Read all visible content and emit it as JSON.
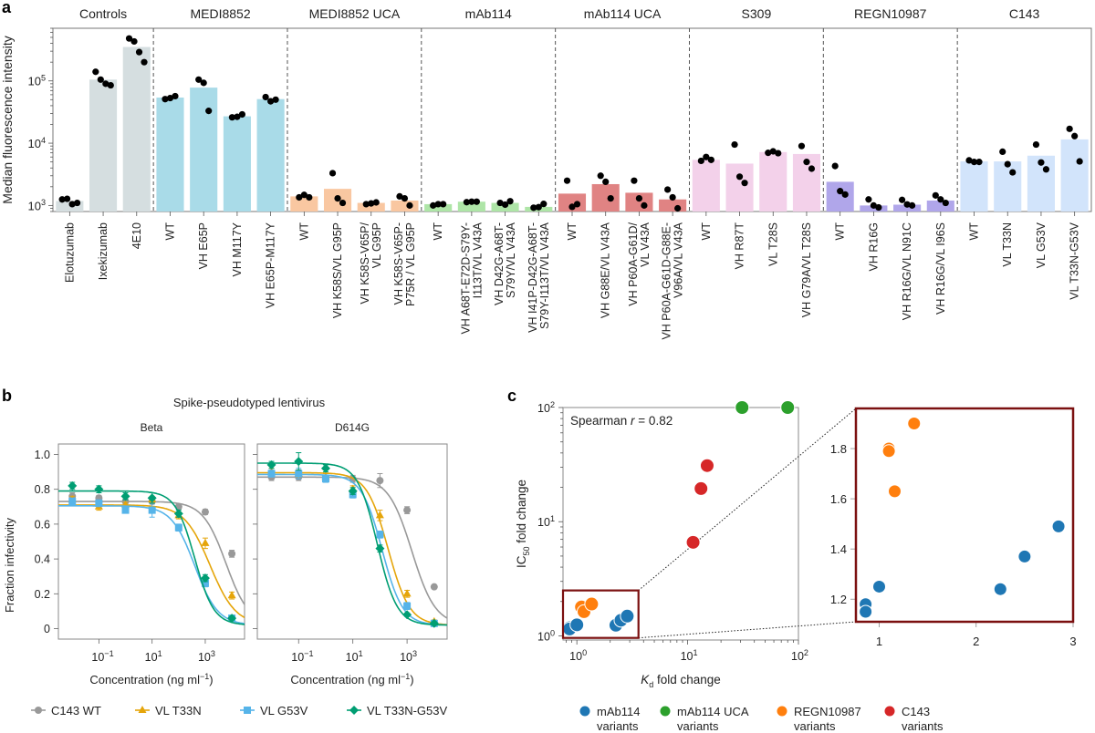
{
  "chart_data": [
    {
      "id": "a",
      "panel_label": "a",
      "type": "bar",
      "ylabel": "Median fluorescence intensity",
      "yscale": "log",
      "ylim": [
        800,
        700000
      ],
      "yticks": [
        {
          "value": 1000,
          "base": "10",
          "exp": "3"
        },
        {
          "value": 10000,
          "base": "10",
          "exp": "4"
        },
        {
          "value": 100000,
          "base": "10",
          "exp": "5"
        }
      ],
      "groups": [
        {
          "name": "Controls",
          "color": "#d5dee0",
          "categories": [
            {
              "label": [
                "Elotuzumab"
              ],
              "value": 1180,
              "points": [
                1250,
                1280,
                1050,
                1100
              ]
            },
            {
              "label": [
                "Ixekizumab"
              ],
              "value": 105000,
              "points": [
                140000,
                105000,
                90000,
                85000
              ]
            },
            {
              "label": [
                "4E10"
              ],
              "value": 350000,
              "points": [
                480000,
                430000,
                290000,
                200000
              ]
            }
          ]
        },
        {
          "name": "MEDI8852",
          "color": "#a9dbe8",
          "categories": [
            {
              "label": [
                "WT"
              ],
              "value": 54000,
              "points": [
                51000,
                53000,
                57000
              ]
            },
            {
              "label": [
                "VH E65P"
              ],
              "value": 78000,
              "points": [
                105000,
                93000,
                33000
              ]
            },
            {
              "label": [
                "VH M117Y"
              ],
              "value": 27000,
              "points": [
                26000,
                26500,
                29000
              ]
            },
            {
              "label": [
                "VH E65P-M117Y"
              ],
              "value": 51000,
              "points": [
                55000,
                47000,
                50000
              ]
            }
          ]
        },
        {
          "name": "MEDI8852 UCA",
          "color": "#f9c7a1",
          "categories": [
            {
              "label": [
                "WT"
              ],
              "value": 1400,
              "points": [
                1350,
                1480,
                1350
              ]
            },
            {
              "label": [
                "VH K58S/VL G95P"
              ],
              "value": 1850,
              "points": [
                3300,
                1300,
                1100
              ]
            },
            {
              "label": [
                "VH K58S-V65P/",
                "VL G95P"
              ],
              "value": 1100,
              "points": [
                1050,
                1080,
                1120
              ]
            },
            {
              "label": [
                "VH K58S-V65P-",
                "P75R / VL G95P"
              ],
              "value": 1200,
              "points": [
                1400,
                1300,
                1000
              ]
            }
          ]
        },
        {
          "name": "mAb114",
          "color": "#aee5a7",
          "categories": [
            {
              "label": [
                "WT"
              ],
              "value": 1050,
              "points": [
                1000,
                1050,
                1050
              ]
            },
            {
              "label": [
                "VH A68T-E72D-S79Y-",
                "I113T/VL V43A"
              ],
              "value": 1150,
              "points": [
                1130,
                1150,
                1150
              ]
            },
            {
              "label": [
                "VH D42G-A68T-",
                "S79Y/VL V43A"
              ],
              "value": 1100,
              "points": [
                1100,
                1030,
                1170
              ]
            },
            {
              "label": [
                "VH  I41P-D42G-A68T-",
                "S79Y-I113T/VL V43A"
              ],
              "value": 950,
              "points": [
                920,
                940,
                1060
              ]
            }
          ]
        },
        {
          "name": "mAb114 UCA",
          "color": "#e08383",
          "categories": [
            {
              "label": [
                "WT"
              ],
              "value": 1550,
              "points": [
                2500,
                950,
                1050
              ]
            },
            {
              "label": [
                "VH G88E/VL V43A"
              ],
              "value": 2200,
              "points": [
                3000,
                2400,
                1300
              ]
            },
            {
              "label": [
                "VH  P60A-G61D/",
                "VL V43A"
              ],
              "value": 1600,
              "points": [
                2500,
                1300,
                1000
              ]
            },
            {
              "label": [
                "VH  P60A-G61D-G88E-",
                "V96A/VL V43A"
              ],
              "value": 1250,
              "points": [
                1800,
                1350,
                900
              ]
            }
          ]
        },
        {
          "name": "S309",
          "color": "#f3d1ea",
          "categories": [
            {
              "label": [
                "WT"
              ],
              "value": 5400,
              "points": [
                5200,
                6000,
                5400
              ]
            },
            {
              "label": [
                "VH R87T"
              ],
              "value": 4700,
              "points": [
                9500,
                2900,
                2300
              ]
            },
            {
              "label": [
                "VL T28S"
              ],
              "value": 7200,
              "points": [
                7000,
                7400,
                6900
              ]
            },
            {
              "label": [
                "VH G79A/VL T28S"
              ],
              "value": 6700,
              "points": [
                9000,
                5000,
                3900
              ]
            }
          ]
        },
        {
          "name": "REGN10987",
          "color": "#b0a6ea",
          "categories": [
            {
              "label": [
                "WT"
              ],
              "value": 2400,
              "points": [
                4300,
                1700,
                1500
              ]
            },
            {
              "label": [
                "VH R16G"
              ],
              "value": 1000,
              "points": [
                1250,
                1000,
                930
              ]
            },
            {
              "label": [
                "VH R16G/VL N91C"
              ],
              "value": 1030,
              "points": [
                1230,
                1040,
                1000
              ]
            },
            {
              "label": [
                "VH R16G/VL I96S"
              ],
              "value": 1200,
              "points": [
                1450,
                1250,
                1100
              ]
            }
          ]
        },
        {
          "name": "C143",
          "color": "#d2e4fb",
          "categories": [
            {
              "label": [
                "WT"
              ],
              "value": 5100,
              "points": [
                5300,
                5000,
                5000
              ]
            },
            {
              "label": [
                "VL T33N"
              ],
              "value": 5100,
              "points": [
                7300,
                4600,
                3400
              ]
            },
            {
              "label": [
                "VL G53V"
              ],
              "value": 6300,
              "points": [
                9500,
                4900,
                3800
              ]
            },
            {
              "label": [
                "VL T33N-G53V"
              ],
              "value": 11500,
              "points": [
                17000,
                13000,
                5100
              ]
            }
          ]
        }
      ]
    },
    {
      "id": "b",
      "panel_label": "b",
      "type": "line",
      "title": "Spike-pseudotyped lentivirus",
      "xlabel": "Concentration (ng ml",
      "xlabel_sup": "−1",
      "xlabel_close": ")",
      "ylabel": "Fraction infectivity",
      "xscale": "log",
      "xlim": [
        0.003,
        30000
      ],
      "ylim": [
        -0.06,
        1.06
      ],
      "xticks": [
        {
          "value": 0.1,
          "base": "10",
          "exp": "−1"
        },
        {
          "value": 10,
          "base": "10",
          "exp": "1"
        },
        {
          "value": 1000,
          "base": "10",
          "exp": "3"
        }
      ],
      "yticks": [
        {
          "value": 0,
          "label": "0"
        },
        {
          "value": 0.2,
          "label": "0.2"
        },
        {
          "value": 0.4,
          "label": "0.4"
        },
        {
          "value": 0.6,
          "label": "0.6"
        },
        {
          "value": 0.8,
          "label": "0.8"
        },
        {
          "value": 1.0,
          "label": "1.0"
        }
      ],
      "concentrations": [
        0.01,
        0.1,
        1,
        10,
        100,
        1000,
        10000
      ],
      "series_legend": [
        {
          "name": "C143 WT",
          "color": "#999999",
          "marker": "circle"
        },
        {
          "name": "VL T33N",
          "color": "#e5a50a",
          "marker": "triangle"
        },
        {
          "name": "VL G53V",
          "color": "#56b4e9",
          "marker": "square"
        },
        {
          "name": "VL T33N-G53V",
          "color": "#009e73",
          "marker": "diamond"
        }
      ],
      "subplots": [
        {
          "title": "Beta",
          "series": [
            {
              "name": "C143 WT",
              "top": 0.73,
              "ic50": 6000,
              "hill": 1.0,
              "y": [
                0.76,
                0.75,
                0.73,
                0.73,
                0.7,
                0.67,
                0.43
              ],
              "err": [
                0.02,
                0.015,
                0.015,
                0.015,
                0.015,
                0.015,
                0.02
              ]
            },
            {
              "name": "VL T33N",
              "top": 0.71,
              "ic50": 1500,
              "hill": 0.9,
              "y": [
                0.74,
                0.7,
                0.71,
                0.74,
                0.65,
                0.49,
                0.19
              ],
              "err": [
                0.02,
                0.02,
                0.015,
                0.02,
                0.02,
                0.03,
                0.02
              ]
            },
            {
              "name": "VL G53V",
              "top": 0.705,
              "ic50": 400,
              "hill": 1.0,
              "y": [
                0.73,
                0.72,
                0.68,
                0.68,
                0.58,
                0.26,
                0.06
              ],
              "err": [
                0.02,
                0.02,
                0.015,
                0.04,
                0.02,
                0.02,
                0.01
              ]
            },
            {
              "name": "VL T33N-G53V",
              "top": 0.79,
              "ic50": 400,
              "hill": 1.2,
              "y": [
                0.82,
                0.8,
                0.76,
                0.75,
                0.66,
                0.29,
                0.06
              ],
              "err": [
                0.02,
                0.02,
                0.02,
                0.03,
                0.02,
                0.02,
                0.01
              ]
            }
          ]
        },
        {
          "title": "D614G",
          "series": [
            {
              "name": "C143 WT",
              "top": 0.87,
              "ic50": 1500,
              "hill": 1.0,
              "y": [
                0.87,
                0.87,
                0.86,
                0.86,
                0.85,
                0.68,
                0.24
              ],
              "err": [
                0.02,
                0.02,
                0.02,
                0.02,
                0.04,
                0.02,
                0.01
              ]
            },
            {
              "name": "VL T33N",
              "top": 0.895,
              "ic50": 200,
              "hill": 1.1,
              "y": [
                0.9,
                0.89,
                0.87,
                0.8,
                0.65,
                0.2,
                0.04
              ],
              "err": [
                0.02,
                0.02,
                0.02,
                0.02,
                0.03,
                0.02,
                0.01
              ]
            },
            {
              "name": "VL G53V",
              "top": 0.885,
              "ic50": 120,
              "hill": 1.15,
              "y": [
                0.89,
                0.89,
                0.86,
                0.77,
                0.54,
                0.13,
                0.03
              ],
              "err": [
                0.02,
                0.03,
                0.02,
                0.02,
                0.02,
                0.02,
                0.01
              ]
            },
            {
              "name": "VL T33N-G53V",
              "top": 0.95,
              "ic50": 80,
              "hill": 1.2,
              "y": [
                0.94,
                0.96,
                0.92,
                0.79,
                0.46,
                0.08,
                0.03
              ],
              "err": [
                0.02,
                0.05,
                0.02,
                0.02,
                0.02,
                0.01,
                0.01
              ]
            }
          ]
        }
      ]
    },
    {
      "id": "c",
      "panel_label": "c",
      "type": "scatter",
      "xlabel_italic": "K",
      "xlabel_sub": "d",
      "xlabel_rest": " fold change",
      "ylabel_main": "IC",
      "ylabel_sub": "50",
      "ylabel_rest": " fold change",
      "annotation": {
        "prefix": "Spearman ",
        "italic": "r",
        "suffix": " = 0.82"
      },
      "xscale": "log",
      "yscale": "log",
      "xlim": [
        0.75,
        100
      ],
      "ylim": [
        0.92,
        100
      ],
      "xticks": [
        {
          "value": 1,
          "base": "10",
          "exp": "0"
        },
        {
          "value": 10,
          "base": "10",
          "exp": "1"
        },
        {
          "value": 100,
          "base": "10",
          "exp": "2"
        }
      ],
      "yticks": [
        {
          "value": 1,
          "base": "10",
          "exp": "0"
        },
        {
          "value": 10,
          "base": "10",
          "exp": "1"
        },
        {
          "value": 100,
          "base": "10",
          "exp": "2"
        }
      ],
      "inset": {
        "box": {
          "x": [
            0.75,
            3.6
          ],
          "y": [
            0.96,
            2.5
          ]
        },
        "xlim": [
          0.76,
          3.0
        ],
        "ylim": [
          1.11,
          1.96
        ],
        "xticks": [
          {
            "value": 1,
            "label": "1"
          },
          {
            "value": 2,
            "label": "2"
          },
          {
            "value": 3,
            "label": "3"
          }
        ],
        "yticks": [
          {
            "value": 1.2,
            "label": "1.2"
          },
          {
            "value": 1.4,
            "label": "1.4"
          },
          {
            "value": 1.6,
            "label": "1.6"
          },
          {
            "value": 1.8,
            "label": "1.8"
          }
        ]
      },
      "box_color": "#7b1010",
      "series": [
        {
          "name": "mAb114 variants",
          "legend": [
            "mAb114",
            "variants"
          ],
          "color": "#1f77b4",
          "points": [
            [
              0.86,
              1.18
            ],
            [
              0.86,
              1.15
            ],
            [
              1.0,
              1.25
            ],
            [
              2.25,
              1.24
            ],
            [
              2.5,
              1.37
            ],
            [
              2.85,
              1.49
            ]
          ]
        },
        {
          "name": "mAb114 UCA variants",
          "legend": [
            "mAb114 UCA",
            "variants"
          ],
          "color": "#2ca02c",
          "points": [
            [
              31,
              100
            ],
            [
              80,
              100
            ]
          ]
        },
        {
          "name": "REGN10987 variants",
          "legend": [
            "REGN10987",
            "variants"
          ],
          "color": "#ff7f0e",
          "points": [
            [
              1.1,
              1.8
            ],
            [
              1.1,
              1.79
            ],
            [
              1.16,
              1.63
            ],
            [
              1.36,
              1.9
            ]
          ]
        },
        {
          "name": "C143 variants",
          "legend": [
            "C143",
            "variants"
          ],
          "color": "#d62728",
          "points": [
            [
              11.2,
              6.6
            ],
            [
              13.2,
              19.5
            ],
            [
              15.0,
              31
            ]
          ]
        }
      ]
    }
  ]
}
